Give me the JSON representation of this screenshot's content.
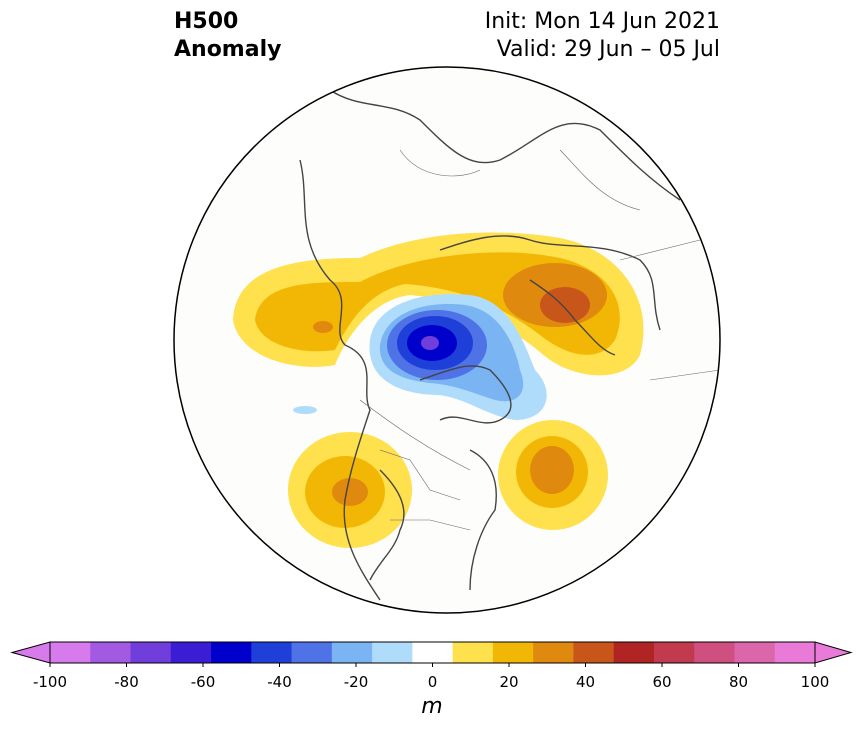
{
  "title": {
    "left_line1": "H500",
    "left_line2": "Anomaly",
    "right_line1": "Init: Mon 14 Jun 2021",
    "right_line2": "Valid: 29 Jun – 05 Jul"
  },
  "colorbar": {
    "units": "m",
    "ticks": [
      "-100",
      "-80",
      "-60",
      "-40",
      "-20",
      "0",
      "20",
      "40",
      "60",
      "80",
      "100"
    ],
    "levels": [
      -100,
      -90,
      -80,
      -70,
      -60,
      -50,
      -40,
      -30,
      -20,
      -10,
      10,
      20,
      30,
      40,
      50,
      60,
      70,
      80,
      90,
      100
    ],
    "colors": [
      "#d77aeb",
      "#a35ae2",
      "#6f3edb",
      "#3b1ed3",
      "#0000cc",
      "#1f3fd9",
      "#4f72e6",
      "#7ab4f2",
      "#b0dcfb",
      "#ffffff",
      "#ffe04d",
      "#f2b705",
      "#e0890f",
      "#c8561a",
      "#b02424",
      "#c23a4e",
      "#cf4f80",
      "#dc66aa",
      "#e97ad8"
    ],
    "under_color": "#d77aeb",
    "over_color": "#e97ad8"
  },
  "map": {
    "projection": "north polar stereographic",
    "features": [
      {
        "name": "negative anomaly over Arctic / Greenland",
        "peak_value": -65
      },
      {
        "name": "positive anomaly over northern Russia",
        "peak_value": 45
      },
      {
        "name": "positive anomaly over Siberia / Alaska side",
        "peak_value": 35
      },
      {
        "name": "positive anomaly over western North America",
        "peak_value": 35
      },
      {
        "name": "positive anomaly over northeast Atlantic / Scandinavia",
        "peak_value": 40
      }
    ]
  }
}
